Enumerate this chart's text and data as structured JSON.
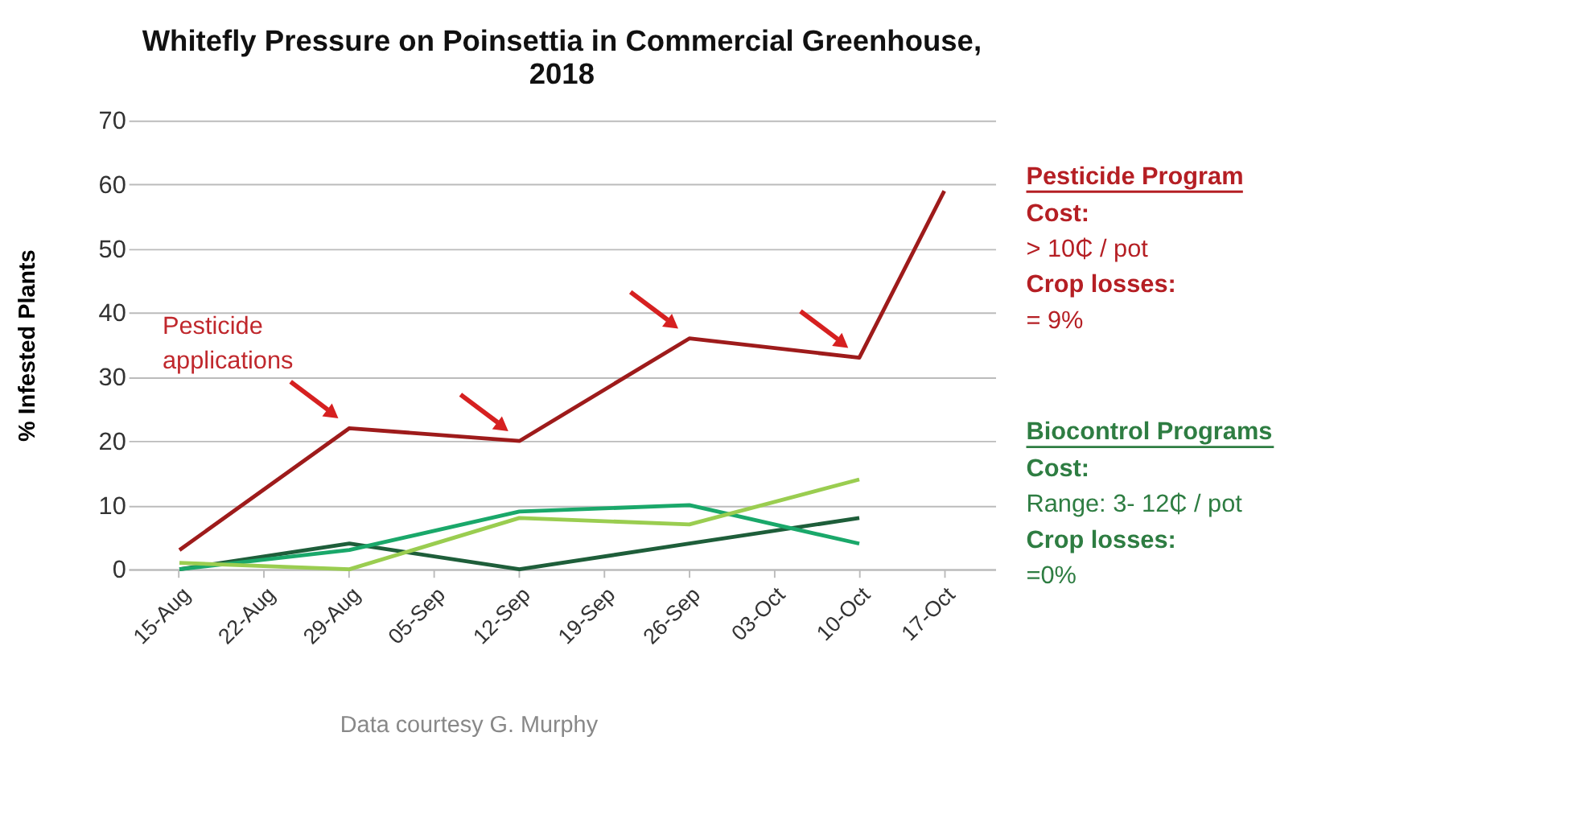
{
  "chart_data": {
    "type": "line",
    "title": "Whitefly Pressure on Poinsettia in Commercial Greenhouse, 2018",
    "ylabel": "% Infested Plants",
    "categories": [
      "15-Aug",
      "22-Aug",
      "29-Aug",
      "05-Sep",
      "12-Sep",
      "19-Sep",
      "26-Sep",
      "03-Oct",
      "10-Oct",
      "17-Oct"
    ],
    "series": [
      {
        "color": "#9e1b1b",
        "values": [
          3,
          null,
          22,
          null,
          20,
          null,
          36,
          null,
          33,
          59
        ]
      },
      {
        "color": "#1e5e3a",
        "values": [
          0,
          null,
          4,
          null,
          0,
          null,
          4,
          null,
          8,
          null
        ]
      },
      {
        "color": "#1aa86a",
        "values": [
          0,
          null,
          3,
          null,
          9,
          null,
          10,
          null,
          4,
          null
        ]
      },
      {
        "color": "#9acd50",
        "values": [
          1,
          null,
          0,
          null,
          8,
          null,
          7,
          null,
          14,
          null
        ]
      }
    ],
    "ylim": [
      0,
      70
    ],
    "yticks": [
      0,
      10,
      20,
      30,
      40,
      50,
      60,
      70
    ],
    "grid": "y",
    "legend": false,
    "line_style": "solid",
    "marker": "none",
    "annotations": [
      "Pesticide applications",
      "Pesticide Program",
      "Cost:",
      "> 10₵ / pot",
      "Crop losses:",
      "= 9%",
      "Biocontrol Programs",
      "Cost:",
      "Range: 3- 12₵ / pot",
      "Crop losses:",
      "=0%",
      "Data courtesy G. Murphy"
    ]
  }
}
